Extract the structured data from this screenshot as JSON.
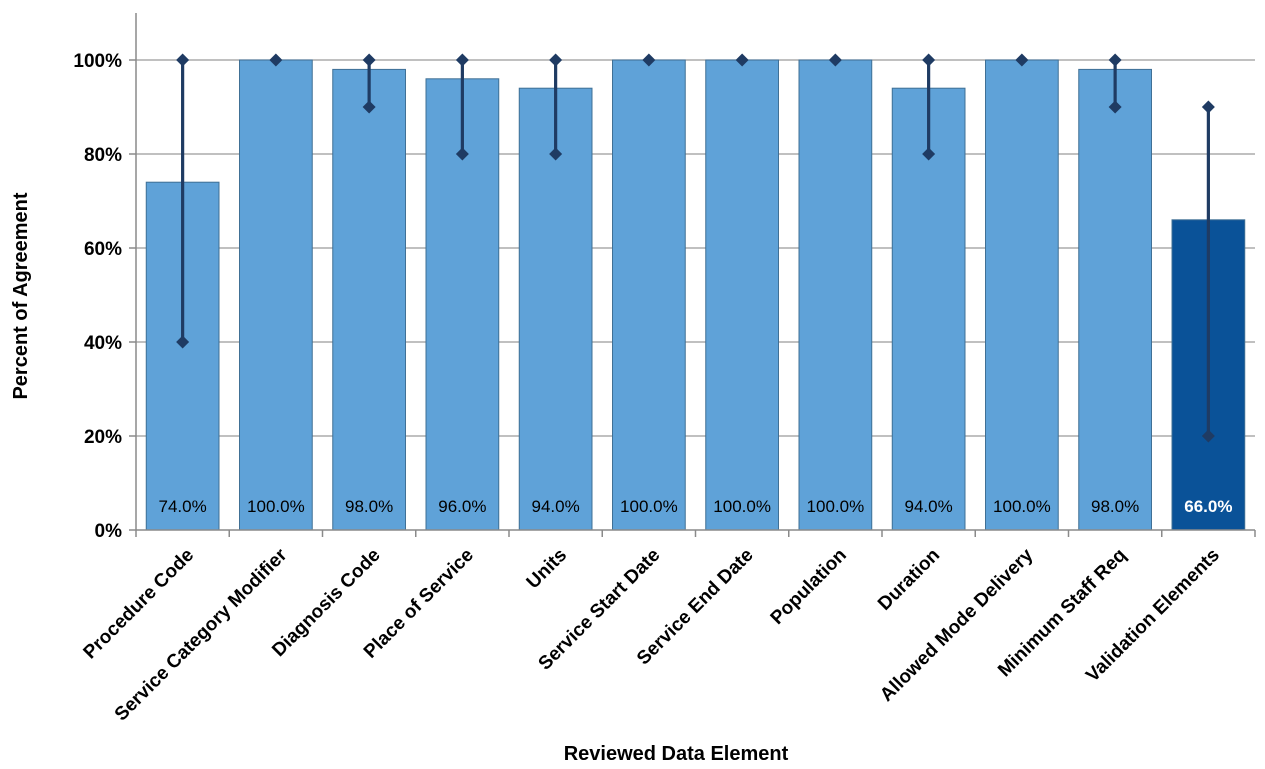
{
  "chart_data": {
    "type": "bar",
    "title": "",
    "xlabel": "Reviewed Data Element",
    "ylabel": "Percent of Agreement",
    "ylim": [
      0,
      110
    ],
    "yticks": [
      0,
      20,
      40,
      60,
      80,
      100
    ],
    "ytick_format": "{v}%",
    "grid": true,
    "legend": "none",
    "categories": [
      "Procedure Code",
      "Service Category Modifier",
      "Diagnosis Code",
      "Place of Service",
      "Units",
      "Service Start Date",
      "Service End Date",
      "Population",
      "Duration",
      "Allowed Mode Delivery",
      "Minimum Staff Req",
      "Validation Elements"
    ],
    "values": [
      74.0,
      100.0,
      98.0,
      96.0,
      94.0,
      100.0,
      100.0,
      100.0,
      94.0,
      100.0,
      98.0,
      66.0
    ],
    "data_labels": [
      "74.0%",
      "100.0%",
      "98.0%",
      "96.0%",
      "94.0%",
      "100.0%",
      "100.0%",
      "100.0%",
      "94.0%",
      "100.0%",
      "98.0%",
      "66.0%"
    ],
    "range_low": [
      40,
      100,
      90,
      80,
      80,
      100,
      100,
      100,
      80,
      100,
      90,
      20
    ],
    "range_high": [
      100,
      100,
      100,
      100,
      100,
      100,
      100,
      100,
      100,
      100,
      100,
      90
    ],
    "highlight_index": 11,
    "colors": {
      "bar": "#5fa2d8",
      "bar_border": "#3f6f95",
      "highlight_bar": "#0a5298",
      "range_line": "#1f3b63",
      "grid": "#9a9a9a",
      "axis": "#8a8a8a",
      "label": "#000000",
      "highlight_label": "#ffffff"
    }
  }
}
